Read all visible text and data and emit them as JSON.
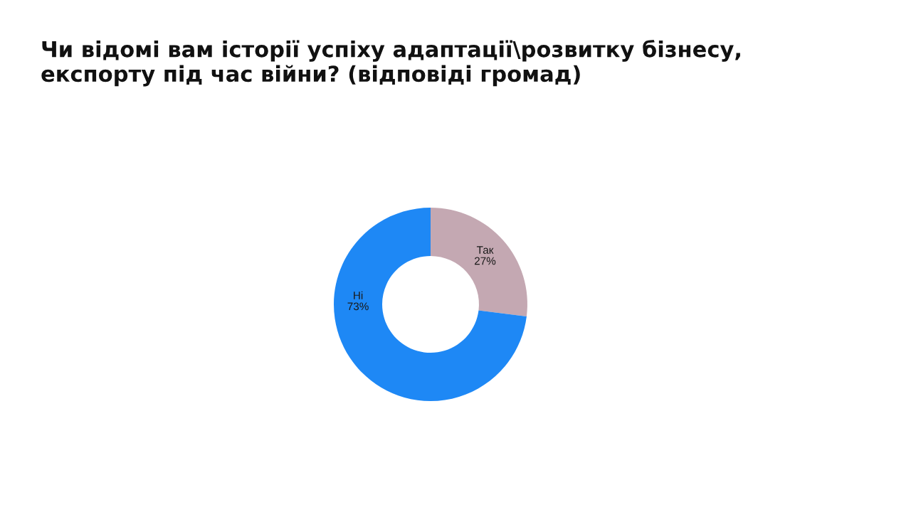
{
  "chart_data": {
    "type": "donut",
    "title": "Чи відомі вам історії успіху адаптації\\розвитку бізнесу, експорту під час війни? (відповіді громад)",
    "categories": [
      "Так",
      "Ні"
    ],
    "values": [
      27,
      73
    ],
    "colors": [
      "#c4a8b2",
      "#1e88f5"
    ],
    "value_labels": [
      "27%",
      "73%"
    ]
  }
}
